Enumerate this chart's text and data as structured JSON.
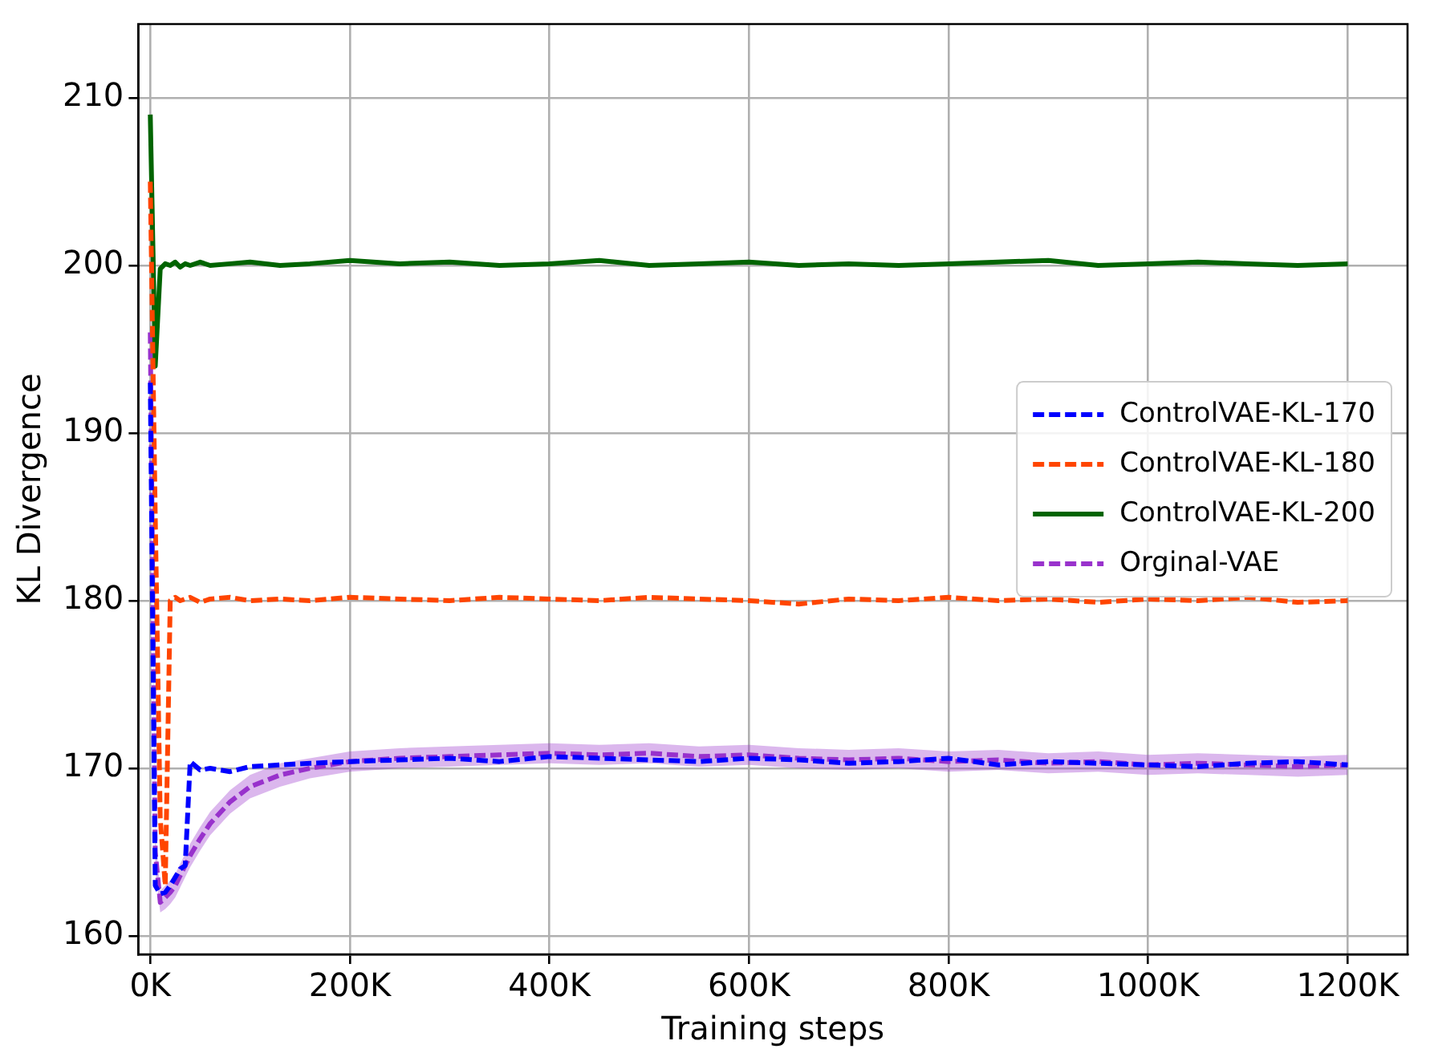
{
  "chart_data": {
    "type": "line",
    "xlabel": "Training steps",
    "ylabel": "KL Divergence",
    "x": [
      0,
      5000,
      10000,
      15000,
      20000,
      25000,
      30000,
      35000,
      40000,
      50000,
      60000,
      80000,
      100000,
      130000,
      160000,
      200000,
      250000,
      300000,
      350000,
      400000,
      450000,
      500000,
      550000,
      600000,
      650000,
      700000,
      750000,
      800000,
      850000,
      900000,
      950000,
      1000000,
      1050000,
      1100000,
      1150000,
      1200000
    ],
    "xlim": [
      -12000,
      1260000
    ],
    "xticks": [
      {
        "value": 0,
        "label": "0K"
      },
      {
        "value": 200000,
        "label": "200K"
      },
      {
        "value": 400000,
        "label": "400K"
      },
      {
        "value": 600000,
        "label": "600K"
      },
      {
        "value": 800000,
        "label": "800K"
      },
      {
        "value": 1000000,
        "label": "1000K"
      },
      {
        "value": 1200000,
        "label": "1200K"
      }
    ],
    "ylim": [
      158.9,
      214.4
    ],
    "yticks": [
      160,
      170,
      180,
      190,
      200,
      210
    ],
    "grid": true,
    "legend": "center right",
    "marker": "none",
    "series": [
      {
        "name": "ControlVAE-KL-170",
        "color": "#0000ff",
        "line_style": "dashed",
        "values": [
          193,
          163,
          162.5,
          162.6,
          163,
          163.5,
          164,
          164.2,
          170.4,
          169.9,
          170,
          169.8,
          170.1,
          170.2,
          170.3,
          170.4,
          170.5,
          170.6,
          170.4,
          170.7,
          170.6,
          170.5,
          170.4,
          170.6,
          170.5,
          170.3,
          170.4,
          170.6,
          170.2,
          170.4,
          170.3,
          170.2,
          170.1,
          170.3,
          170.4,
          170.2
        ]
      },
      {
        "name": "ControlVAE-KL-180",
        "color": "#ff4500",
        "line_style": "dashed",
        "values": [
          205,
          185,
          167,
          163,
          180,
          180.2,
          180,
          180.1,
          180.2,
          179.9,
          180.1,
          180.2,
          180,
          180.1,
          180,
          180.2,
          180.1,
          180,
          180.2,
          180.1,
          180,
          180.2,
          180.1,
          180,
          179.8,
          180.1,
          180,
          180.2,
          180,
          180.1,
          179.9,
          180.1,
          180,
          180.2,
          179.9,
          180
        ]
      },
      {
        "name": "ControlVAE-KL-200",
        "color": "#006400",
        "line_style": "solid",
        "values": [
          209,
          194,
          199.8,
          200.1,
          200,
          200.2,
          199.9,
          200.1,
          200,
          200.2,
          200,
          200.1,
          200.2,
          200,
          200.1,
          200.3,
          200.1,
          200.2,
          200,
          200.1,
          200.3,
          200,
          200.1,
          200.2,
          200,
          200.1,
          200,
          200.1,
          200.2,
          200.3,
          200,
          200.1,
          200.2,
          200.1,
          200,
          200.1
        ]
      },
      {
        "name": "Orginal-VAE",
        "color": "#9932cc",
        "line_style": "dashed",
        "values": [
          196,
          165,
          162,
          162.3,
          162.6,
          163,
          163.6,
          164.2,
          164.8,
          165.8,
          166.7,
          168,
          168.9,
          169.6,
          170,
          170.4,
          170.6,
          170.7,
          170.8,
          170.9,
          170.8,
          170.9,
          170.7,
          170.8,
          170.6,
          170.5,
          170.6,
          170.4,
          170.5,
          170.3,
          170.4,
          170.2,
          170.3,
          170.2,
          170.1,
          170.2
        ],
        "lower": [
          195,
          164,
          161.4,
          161.6,
          161.9,
          162.3,
          162.9,
          163.5,
          164.1,
          165.1,
          166,
          167.3,
          168.2,
          168.9,
          169.4,
          169.8,
          170,
          170.1,
          170.2,
          170.3,
          170.2,
          170.3,
          170.1,
          170.2,
          170,
          169.9,
          170,
          169.8,
          169.9,
          169.7,
          169.8,
          169.6,
          169.7,
          169.6,
          169.5,
          169.6
        ],
        "upper": [
          197,
          166,
          162.7,
          163,
          163.3,
          163.7,
          164.3,
          164.9,
          165.5,
          166.5,
          167.4,
          168.7,
          169.6,
          170.3,
          170.6,
          171,
          171.2,
          171.3,
          171.4,
          171.5,
          171.4,
          171.5,
          171.3,
          171.4,
          171.2,
          171.1,
          171.2,
          171,
          171.1,
          170.9,
          171,
          170.8,
          170.9,
          170.8,
          170.7,
          170.8
        ]
      }
    ]
  }
}
